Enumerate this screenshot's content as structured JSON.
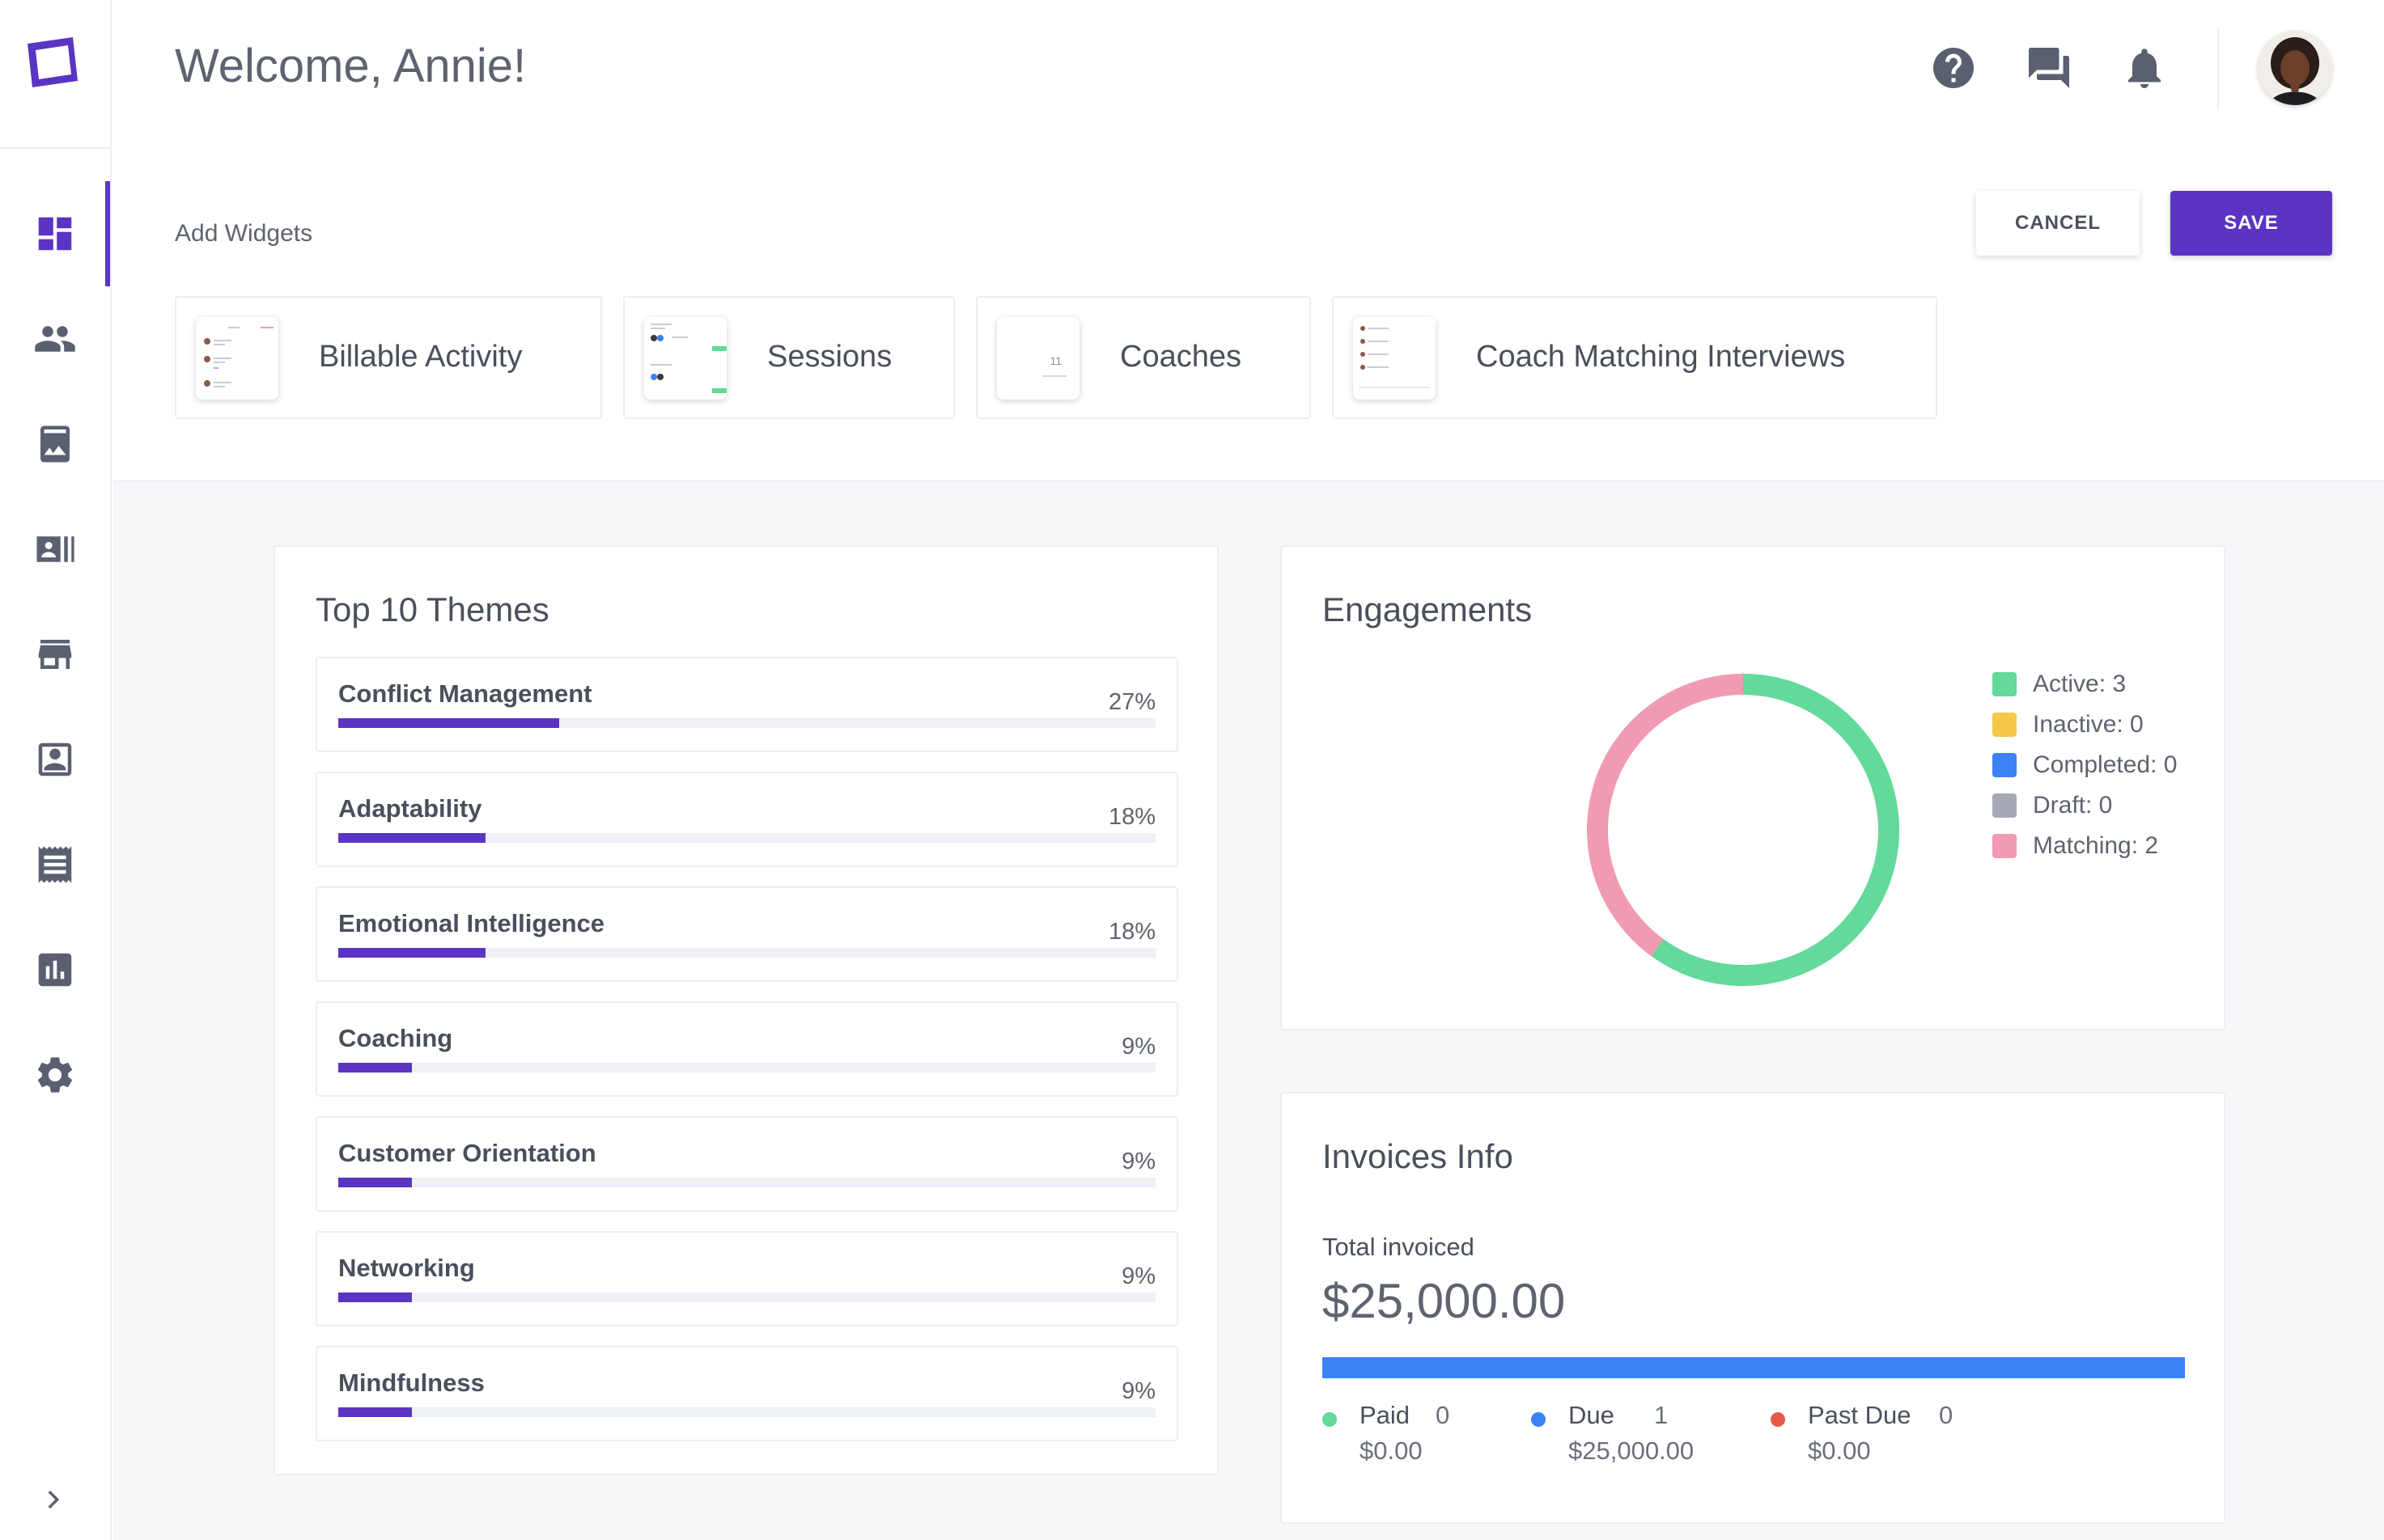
{
  "header": {
    "welcome": "Welcome, Annie!",
    "icons": [
      "help-icon",
      "chat-icon",
      "bell-icon"
    ]
  },
  "sidebar": {
    "items": [
      {
        "icon": "dashboard-icon",
        "active": true
      },
      {
        "icon": "people-icon",
        "active": false
      },
      {
        "icon": "image-book-icon",
        "active": false
      },
      {
        "icon": "contacts-list-icon",
        "active": false
      },
      {
        "icon": "store-icon",
        "active": false
      },
      {
        "icon": "profile-card-icon",
        "active": false
      },
      {
        "icon": "receipt-icon",
        "active": false
      },
      {
        "icon": "bar-chart-icon",
        "active": false
      },
      {
        "icon": "gear-icon",
        "active": false
      }
    ]
  },
  "widgets": {
    "label": "Add Widgets",
    "cancel": "CANCEL",
    "save": "SAVE",
    "cards": [
      {
        "name": "Billable Activity"
      },
      {
        "name": "Sessions"
      },
      {
        "name": "Coaches",
        "thumb_value": "11"
      },
      {
        "name": "Coach Matching Interviews"
      }
    ]
  },
  "themes": {
    "title": "Top 10 Themes",
    "items": [
      {
        "name": "Conflict Management",
        "pct": "27%",
        "value": 27
      },
      {
        "name": "Adaptability",
        "pct": "18%",
        "value": 18
      },
      {
        "name": "Emotional Intelligence",
        "pct": "18%",
        "value": 18
      },
      {
        "name": "Coaching",
        "pct": "9%",
        "value": 9
      },
      {
        "name": "Customer Orientation",
        "pct": "9%",
        "value": 9
      },
      {
        "name": "Networking",
        "pct": "9%",
        "value": 9
      },
      {
        "name": "Mindfulness",
        "pct": "9%",
        "value": 9
      }
    ]
  },
  "engagements": {
    "title": "Engagements",
    "legend": [
      {
        "label": "Active: 3",
        "color": "#63d99a",
        "value": 3
      },
      {
        "label": "Inactive: 0",
        "color": "#f5c84a",
        "value": 0
      },
      {
        "label": "Completed: 0",
        "color": "#3b82f6",
        "value": 0
      },
      {
        "label": "Draft: 0",
        "color": "#a5a9b3",
        "value": 0
      },
      {
        "label": "Matching: 2",
        "color": "#f09bb1",
        "value": 2
      }
    ]
  },
  "invoices": {
    "title": "Invoices Info",
    "total_label": "Total invoiced",
    "total": "$25,000.00",
    "stats": [
      {
        "name": "Paid",
        "count": "0",
        "amount": "$0.00",
        "color": "#63d99a"
      },
      {
        "name": "Due",
        "count": "1",
        "amount": "$25,000.00",
        "color": "#3b82f6"
      },
      {
        "name": "Past Due",
        "count": "0",
        "amount": "$0.00",
        "color": "#ea5a4a"
      }
    ]
  },
  "colors": {
    "accent": "#5b34c3",
    "sidebar_icon": "#5a6070",
    "due_bar": "#3b82f6"
  }
}
